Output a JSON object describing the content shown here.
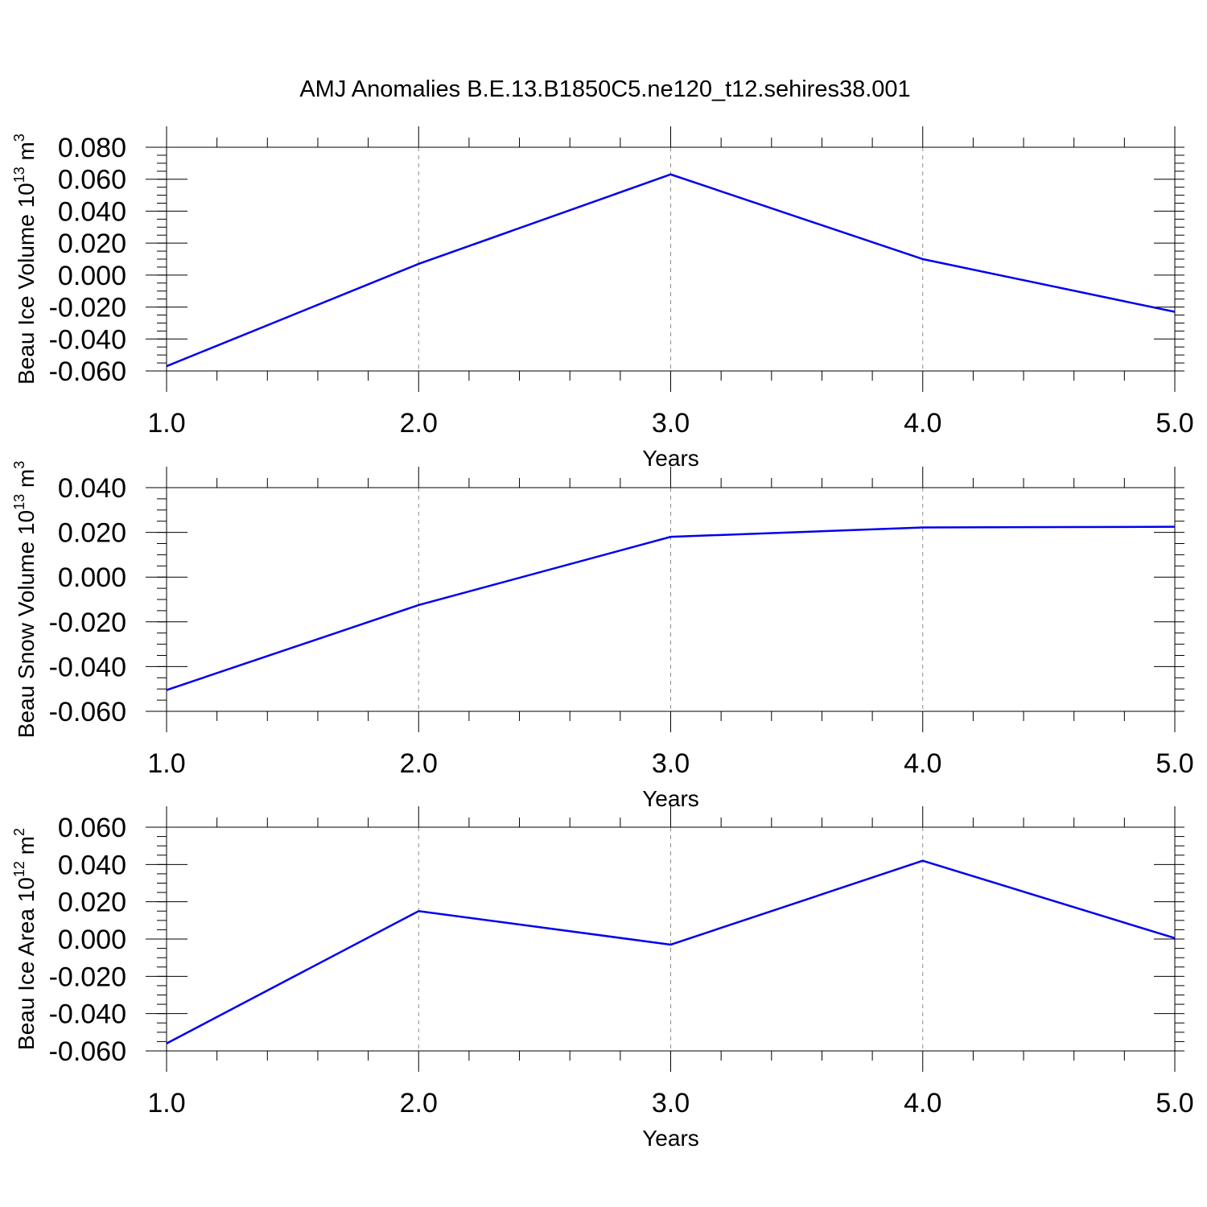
{
  "title": "AMJ Anomalies B.E.13.B1850C5.ne120_t12.sehires38.001",
  "line_color": "#0000ee",
  "chart_data": [
    {
      "type": "line",
      "ylabel": "Beau Ice Volume",
      "ylabel_unit": "10",
      "ylabel_exp": "13",
      "ylabel_unit2": " m",
      "ylabel_exp2": "3",
      "xlabel": "Years",
      "x": [
        1.0,
        2.0,
        3.0,
        4.0,
        5.0
      ],
      "y": [
        -0.057,
        0.007,
        0.063,
        0.01,
        -0.023
      ],
      "xlim": [
        1.0,
        5.0
      ],
      "ylim": [
        -0.06,
        0.08
      ],
      "x_ticks": [
        1.0,
        2.0,
        3.0,
        4.0,
        5.0
      ],
      "x_tick_labels": [
        "1.0",
        "2.0",
        "3.0",
        "4.0",
        "5.0"
      ],
      "y_ticks": [
        -0.06,
        -0.04,
        -0.02,
        0.0,
        0.02,
        0.04,
        0.06,
        0.08
      ],
      "y_tick_labels": [
        "-0.060",
        "-0.040",
        "-0.020",
        "0.000",
        "0.020",
        "0.040",
        "0.060",
        "0.080"
      ],
      "y_minor_step": 0.005,
      "grid": "vertical dashed"
    },
    {
      "type": "line",
      "ylabel": "Beau Snow Volume",
      "ylabel_unit": "10",
      "ylabel_exp": "13",
      "ylabel_unit2": " m",
      "ylabel_exp2": "3",
      "xlabel": "Years",
      "x": [
        1.0,
        2.0,
        3.0,
        4.0,
        5.0
      ],
      "y": [
        -0.0505,
        -0.0125,
        0.018,
        0.0222,
        0.0225
      ],
      "xlim": [
        1.0,
        5.0
      ],
      "ylim": [
        -0.06,
        0.04
      ],
      "x_ticks": [
        1.0,
        2.0,
        3.0,
        4.0,
        5.0
      ],
      "x_tick_labels": [
        "1.0",
        "2.0",
        "3.0",
        "4.0",
        "5.0"
      ],
      "y_ticks": [
        -0.06,
        -0.04,
        -0.02,
        0.0,
        0.02,
        0.04
      ],
      "y_tick_labels": [
        "-0.060",
        "-0.040",
        "-0.020",
        "0.000",
        "0.020",
        "0.040"
      ],
      "y_minor_step": 0.005,
      "grid": "vertical dashed"
    },
    {
      "type": "line",
      "ylabel": "Beau Ice Area",
      "ylabel_unit": "10",
      "ylabel_exp": "12",
      "ylabel_unit2": " m",
      "ylabel_exp2": "2",
      "xlabel": "Years",
      "x": [
        1.0,
        2.0,
        3.0,
        4.0,
        5.0
      ],
      "y": [
        -0.056,
        0.015,
        -0.003,
        0.042,
        0.0005
      ],
      "xlim": [
        1.0,
        5.0
      ],
      "ylim": [
        -0.06,
        0.06
      ],
      "x_ticks": [
        1.0,
        2.0,
        3.0,
        4.0,
        5.0
      ],
      "x_tick_labels": [
        "1.0",
        "2.0",
        "3.0",
        "4.0",
        "5.0"
      ],
      "y_ticks": [
        -0.06,
        -0.04,
        -0.02,
        0.0,
        0.02,
        0.04,
        0.06
      ],
      "y_tick_labels": [
        "-0.060",
        "-0.040",
        "-0.020",
        "0.000",
        "0.020",
        "0.040",
        "0.060"
      ],
      "y_minor_step": 0.005,
      "grid": "vertical dashed"
    }
  ]
}
